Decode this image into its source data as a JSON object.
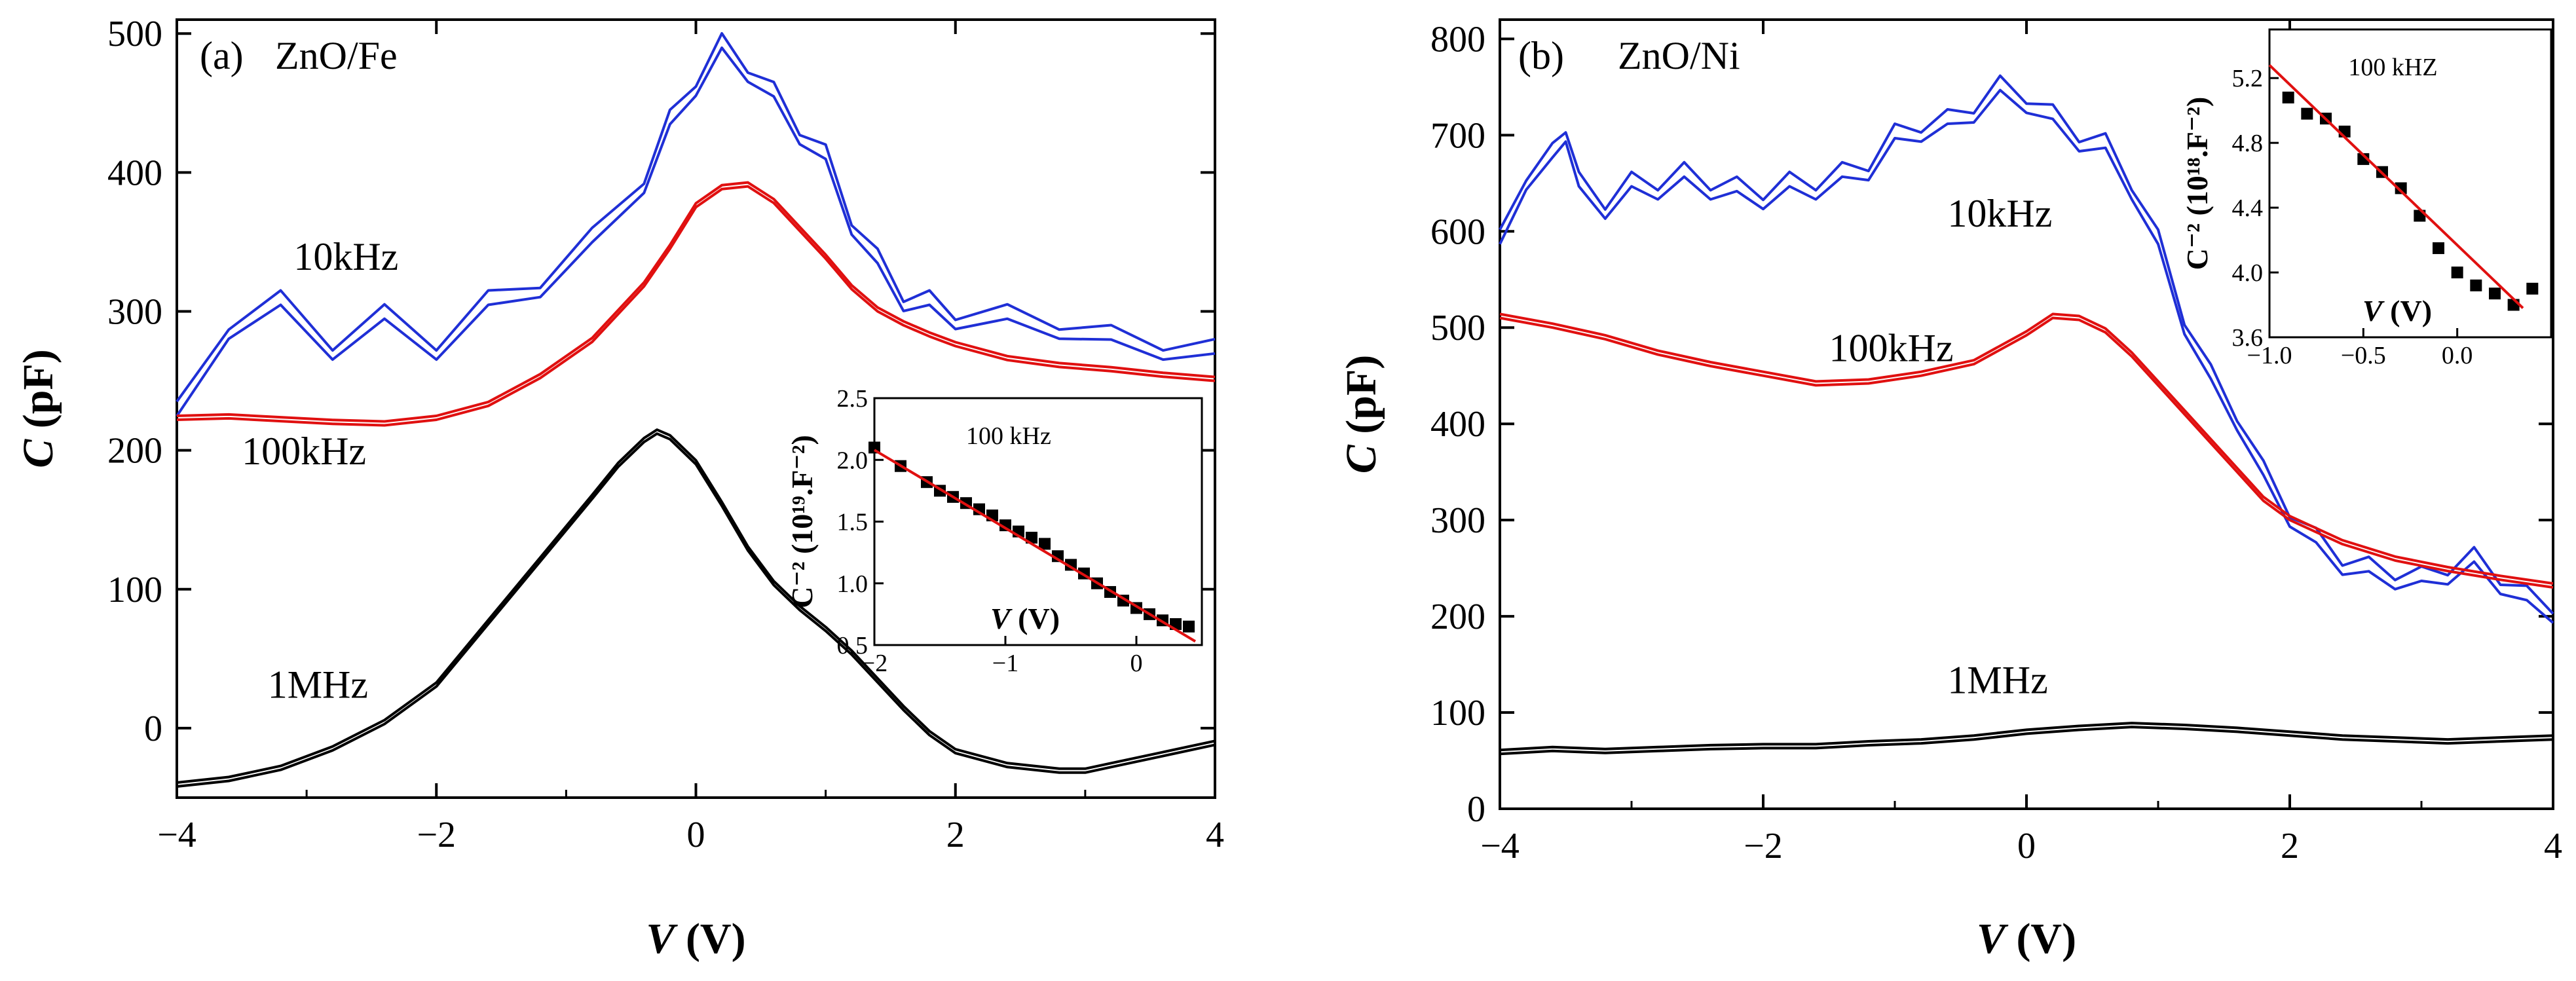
{
  "chart_data": [
    {
      "type": "line",
      "panel_label": "(a)",
      "title": "ZnO/Fe",
      "xlabel_var": "V",
      "xlabel_unit": " (V)",
      "ylabel_var": "C",
      "ylabel_unit": " (pF)",
      "xlim": [
        -4,
        4
      ],
      "ylim": [
        -50,
        510
      ],
      "xticks": [
        -4,
        -2,
        0,
        2,
        4
      ],
      "xtick_labels": [
        "−4",
        "−2",
        "0",
        "2",
        "4"
      ],
      "yticks": [
        0,
        100,
        200,
        300,
        400,
        500
      ],
      "ytick_labels": [
        "0",
        "100",
        "200",
        "300",
        "400",
        "500"
      ],
      "series": [
        {
          "name": "10kHz",
          "color": "#1f2fd6",
          "label": "10kHz",
          "label_at": [
            -3.1,
            330
          ],
          "x": [
            -4.0,
            -3.6,
            -3.2,
            -2.8,
            -2.4,
            -2.0,
            -1.6,
            -1.2,
            -0.8,
            -0.4,
            -0.2,
            0.0,
            0.2,
            0.4,
            0.6,
            0.8,
            1.0,
            1.2,
            1.4,
            1.6,
            1.8,
            2.0,
            2.4,
            2.8,
            3.2,
            3.6,
            4.0
          ],
          "values": [
            220,
            285,
            300,
            270,
            290,
            270,
            300,
            315,
            345,
            390,
            430,
            460,
            485,
            470,
            450,
            425,
            405,
            360,
            330,
            305,
            300,
            292,
            290,
            285,
            275,
            270,
            265
          ]
        },
        {
          "name": "100kHz",
          "color": "#e01010",
          "label": "100kHz",
          "label_at": [
            -3.5,
            190
          ],
          "x": [
            -4.0,
            -3.6,
            -3.2,
            -2.8,
            -2.4,
            -2.0,
            -1.6,
            -1.2,
            -0.8,
            -0.4,
            -0.2,
            0.0,
            0.2,
            0.4,
            0.6,
            0.8,
            1.0,
            1.2,
            1.4,
            1.6,
            1.8,
            2.0,
            2.4,
            2.8,
            3.2,
            3.6,
            4.0
          ],
          "values": [
            222,
            223,
            221,
            219,
            218,
            222,
            232,
            252,
            278,
            318,
            345,
            375,
            388,
            390,
            378,
            358,
            338,
            316,
            300,
            290,
            282,
            275,
            265,
            260,
            257,
            253,
            250
          ]
        },
        {
          "name": "1MHz",
          "color": "#000000",
          "label": "1MHz",
          "label_at": [
            -3.3,
            22
          ],
          "x": [
            -4.0,
            -3.6,
            -3.2,
            -2.8,
            -2.4,
            -2.0,
            -1.6,
            -1.2,
            -0.8,
            -0.6,
            -0.4,
            -0.3,
            -0.2,
            0.0,
            0.2,
            0.4,
            0.6,
            0.8,
            1.0,
            1.2,
            1.4,
            1.6,
            1.8,
            2.0,
            2.4,
            2.8,
            3.0,
            3.2,
            3.6,
            4.0
          ],
          "values": [
            -42,
            -38,
            -30,
            -16,
            3,
            30,
            75,
            120,
            165,
            188,
            206,
            212,
            208,
            190,
            160,
            128,
            103,
            85,
            70,
            53,
            33,
            13,
            -5,
            -18,
            -28,
            -32,
            -32,
            -28,
            -20,
            -12
          ]
        }
      ],
      "inset": {
        "xlim": [
          -2,
          0.5
        ],
        "ylim": [
          0.5,
          2.5
        ],
        "xticks": [
          -2,
          -1,
          0
        ],
        "xtick_labels": [
          "−2",
          "−1",
          "0"
        ],
        "yticks": [
          0.5,
          1.0,
          1.5,
          2.0,
          2.5
        ],
        "ytick_labels": [
          "0.5",
          "1.0",
          "1.5",
          "2.0",
          "2.5"
        ],
        "ylabel": "C⁻² (10¹⁹.F⁻²)",
        "xlabel_var": "V",
        "xlabel_unit": " (V)",
        "label": "100 kHz",
        "points": {
          "x": [
            -2.0,
            -1.8,
            -1.6,
            -1.5,
            -1.4,
            -1.3,
            -1.2,
            -1.1,
            -1.0,
            -0.9,
            -0.8,
            -0.7,
            -0.6,
            -0.5,
            -0.4,
            -0.3,
            -0.2,
            -0.1,
            0.0,
            0.1,
            0.2,
            0.3,
            0.4
          ],
          "values": [
            2.1,
            1.95,
            1.82,
            1.75,
            1.7,
            1.65,
            1.6,
            1.55,
            1.47,
            1.42,
            1.37,
            1.32,
            1.22,
            1.15,
            1.08,
            1.0,
            0.93,
            0.86,
            0.8,
            0.75,
            0.7,
            0.67,
            0.65
          ]
        },
        "fit": {
          "x": [
            -2.0,
            0.45
          ],
          "values": [
            2.08,
            0.53
          ],
          "color": "#e01010"
        }
      }
    },
    {
      "type": "line",
      "panel_label": "(b)",
      "title": "ZnO/Ni",
      "xlabel_var": "V",
      "xlabel_unit": " (V)",
      "ylabel_var": "C",
      "ylabel_unit": " (pF)",
      "xlim": [
        -4,
        4
      ],
      "ylim": [
        0,
        820
      ],
      "xticks": [
        -4,
        -2,
        0,
        2,
        4
      ],
      "xtick_labels": [
        "−4",
        "−2",
        "0",
        "2",
        "4"
      ],
      "yticks": [
        0,
        100,
        200,
        300,
        400,
        500,
        600,
        700,
        800
      ],
      "ytick_labels": [
        "0",
        "100",
        "200",
        "300",
        "400",
        "500",
        "600",
        "700",
        "800"
      ],
      "series": [
        {
          "name": "10kHz",
          "color": "#1f2fd6",
          "label": "10kHz",
          "label_at": [
            -0.6,
            605
          ],
          "x": [
            -4.0,
            -3.8,
            -3.6,
            -3.5,
            -3.4,
            -3.2,
            -3.0,
            -2.8,
            -2.6,
            -2.4,
            -2.2,
            -2.0,
            -1.8,
            -1.6,
            -1.4,
            -1.2,
            -1.0,
            -0.8,
            -0.6,
            -0.4,
            -0.2,
            0.0,
            0.2,
            0.4,
            0.6,
            0.8,
            1.0,
            1.2,
            1.4,
            1.6,
            1.8,
            2.0,
            2.2,
            2.4,
            2.6,
            2.8,
            3.0,
            3.2,
            3.4,
            3.6,
            3.8,
            4.0
          ],
          "values": [
            580,
            650,
            670,
            700,
            640,
            620,
            640,
            640,
            650,
            640,
            635,
            630,
            640,
            640,
            650,
            660,
            690,
            700,
            705,
            720,
            740,
            730,
            710,
            690,
            680,
            640,
            580,
            500,
            440,
            400,
            340,
            300,
            270,
            250,
            240,
            235,
            230,
            240,
            250,
            230,
            210,
            200
          ]
        },
        {
          "name": "100kHz",
          "color": "#e01010",
          "label": "100kHz",
          "label_at": [
            -1.5,
            465
          ],
          "x": [
            -4.0,
            -3.6,
            -3.2,
            -2.8,
            -2.4,
            -2.0,
            -1.6,
            -1.2,
            -0.8,
            -0.4,
            0.0,
            0.2,
            0.4,
            0.6,
            0.8,
            1.0,
            1.2,
            1.4,
            1.6,
            1.8,
            2.0,
            2.4,
            2.8,
            3.2,
            3.6,
            4.0
          ],
          "values": [
            510,
            500,
            488,
            472,
            460,
            450,
            440,
            442,
            450,
            462,
            492,
            510,
            508,
            495,
            470,
            440,
            410,
            380,
            350,
            320,
            300,
            275,
            258,
            247,
            238,
            230
          ]
        },
        {
          "name": "1MHz",
          "color": "#000000",
          "label": "1MHz",
          "label_at": [
            -0.6,
            120
          ],
          "x": [
            -4.0,
            -3.6,
            -3.2,
            -2.8,
            -2.4,
            -2.0,
            -1.6,
            -1.2,
            -0.8,
            -0.4,
            0.0,
            0.4,
            0.8,
            1.2,
            1.6,
            2.0,
            2.4,
            2.8,
            3.2,
            3.6,
            4.0
          ],
          "values": [
            57,
            60,
            58,
            60,
            62,
            63,
            63,
            66,
            68,
            72,
            78,
            82,
            85,
            83,
            80,
            76,
            72,
            70,
            68,
            70,
            72
          ]
        }
      ],
      "inset": {
        "xlim": [
          -1.0,
          0.5
        ],
        "ylim": [
          3.6,
          5.5
        ],
        "xticks": [
          -1.0,
          -0.5,
          0.0
        ],
        "xtick_labels": [
          "−1.0",
          "−0.5",
          "0.0"
        ],
        "yticks": [
          3.6,
          4.0,
          4.4,
          4.8,
          5.2
        ],
        "ytick_labels": [
          "3.6",
          "4.0",
          "4.4",
          "4.8",
          "5.2"
        ],
        "ylabel": "C⁻² (10¹⁸.F⁻²)",
        "xlabel_var": "V",
        "xlabel_unit": " (V)",
        "label": "100 kHZ",
        "points": {
          "x": [
            -0.9,
            -0.8,
            -0.7,
            -0.6,
            -0.5,
            -0.4,
            -0.3,
            -0.2,
            -0.1,
            0.0,
            0.1,
            0.2,
            0.3,
            0.4
          ],
          "values": [
            5.08,
            4.98,
            4.95,
            4.87,
            4.7,
            4.62,
            4.52,
            4.35,
            4.15,
            4.0,
            3.92,
            3.87,
            3.8,
            3.9
          ]
        },
        "fit": {
          "x": [
            -1.0,
            0.35
          ],
          "values": [
            5.28,
            3.78
          ],
          "color": "#e01010"
        }
      }
    }
  ]
}
